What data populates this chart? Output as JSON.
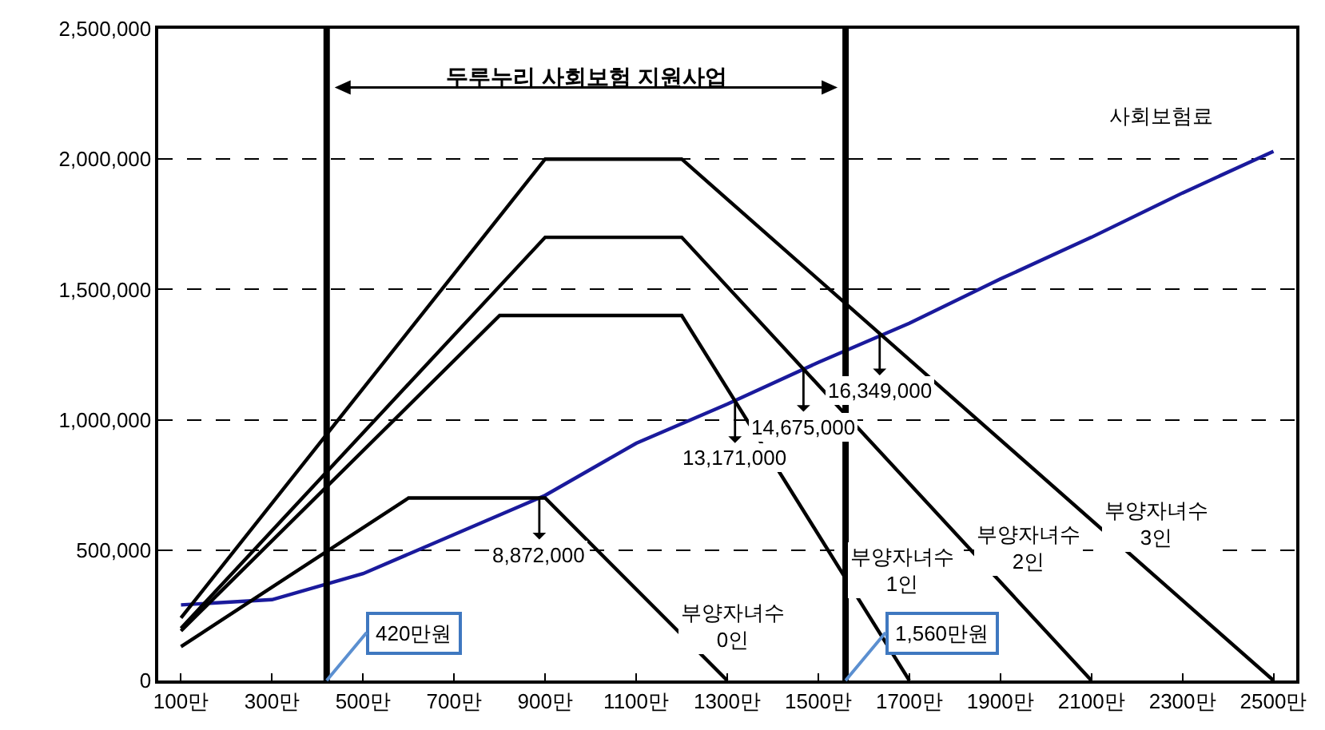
{
  "chart_data": {
    "type": "line",
    "title": "두루누리 사회보험 지원사업",
    "xlim": [
      50,
      2550
    ],
    "xticks": [
      {
        "value": 100,
        "label": "100만"
      },
      {
        "value": 300,
        "label": "300만"
      },
      {
        "value": 500,
        "label": "500만"
      },
      {
        "value": 700,
        "label": "700만"
      },
      {
        "value": 900,
        "label": "900만"
      },
      {
        "value": 1100,
        "label": "1100만"
      },
      {
        "value": 1300,
        "label": "1300만"
      },
      {
        "value": 1500,
        "label": "1500만"
      },
      {
        "value": 1700,
        "label": "1700만"
      },
      {
        "value": 1900,
        "label": "1900만"
      },
      {
        "value": 2100,
        "label": "2100만"
      },
      {
        "value": 2300,
        "label": "2300만"
      },
      {
        "value": 2500,
        "label": "2500만"
      }
    ],
    "ylim": [
      0,
      2500000
    ],
    "yticks": [
      0,
      {
        "value": 500000,
        "label": "500,000"
      },
      {
        "value": 1000000,
        "label": "1,000,000"
      },
      {
        "value": 1500000,
        "label": "1,500,000"
      },
      {
        "value": 2000000,
        "label": "2,000,000"
      },
      {
        "value": 2500000,
        "label": "2,500,000"
      }
    ],
    "grid": "y",
    "legend": false,
    "marker": "none",
    "line_style": "solid",
    "series": [
      {
        "name": "사회보험료",
        "color": "#1a1a9c",
        "x": [
          100,
          300,
          500,
          700,
          900,
          1100,
          1300,
          1500,
          1700,
          1900,
          2100,
          2300,
          2500
        ],
        "values": [
          290000,
          310000,
          410000,
          560000,
          710000,
          910000,
          1060000,
          1220000,
          1370000,
          1540000,
          1700000,
          1870000,
          2030000
        ]
      },
      {
        "name": "부양자녀수 0인",
        "color": "#000000",
        "x": [
          100,
          600,
          900,
          1300
        ],
        "values": [
          130000,
          700000,
          700000,
          0
        ]
      },
      {
        "name": "부양자녀수 1인",
        "color": "#000000",
        "x": [
          100,
          800,
          1200,
          1700
        ],
        "values": [
          190000,
          1400000,
          1400000,
          0
        ]
      },
      {
        "name": "부양자녀수 2인",
        "color": "#000000",
        "x": [
          100,
          900,
          1200,
          2100
        ],
        "values": [
          200000,
          1700000,
          1700000,
          0
        ]
      },
      {
        "name": "부양자녀수 3인",
        "color": "#000000",
        "x": [
          100,
          900,
          1200,
          2500
        ],
        "values": [
          240000,
          2000000,
          2000000,
          0
        ]
      }
    ],
    "ref_lines": [
      {
        "axis": "x",
        "value": 420,
        "label": "420만원",
        "color": "#000000"
      },
      {
        "axis": "x",
        "value": 1560,
        "label": "1,560만원",
        "color": "#000000"
      }
    ],
    "annotations": [
      {
        "text": "8,872,000",
        "x": 887.2,
        "y": 700000
      },
      {
        "text": "13,171,000",
        "x": 1317.1,
        "y": 1070000
      },
      {
        "text": "14,675,000",
        "x": 1467.5,
        "y": 1190000
      },
      {
        "text": "16,349,000",
        "x": 1634.9,
        "y": 1330000
      }
    ]
  }
}
